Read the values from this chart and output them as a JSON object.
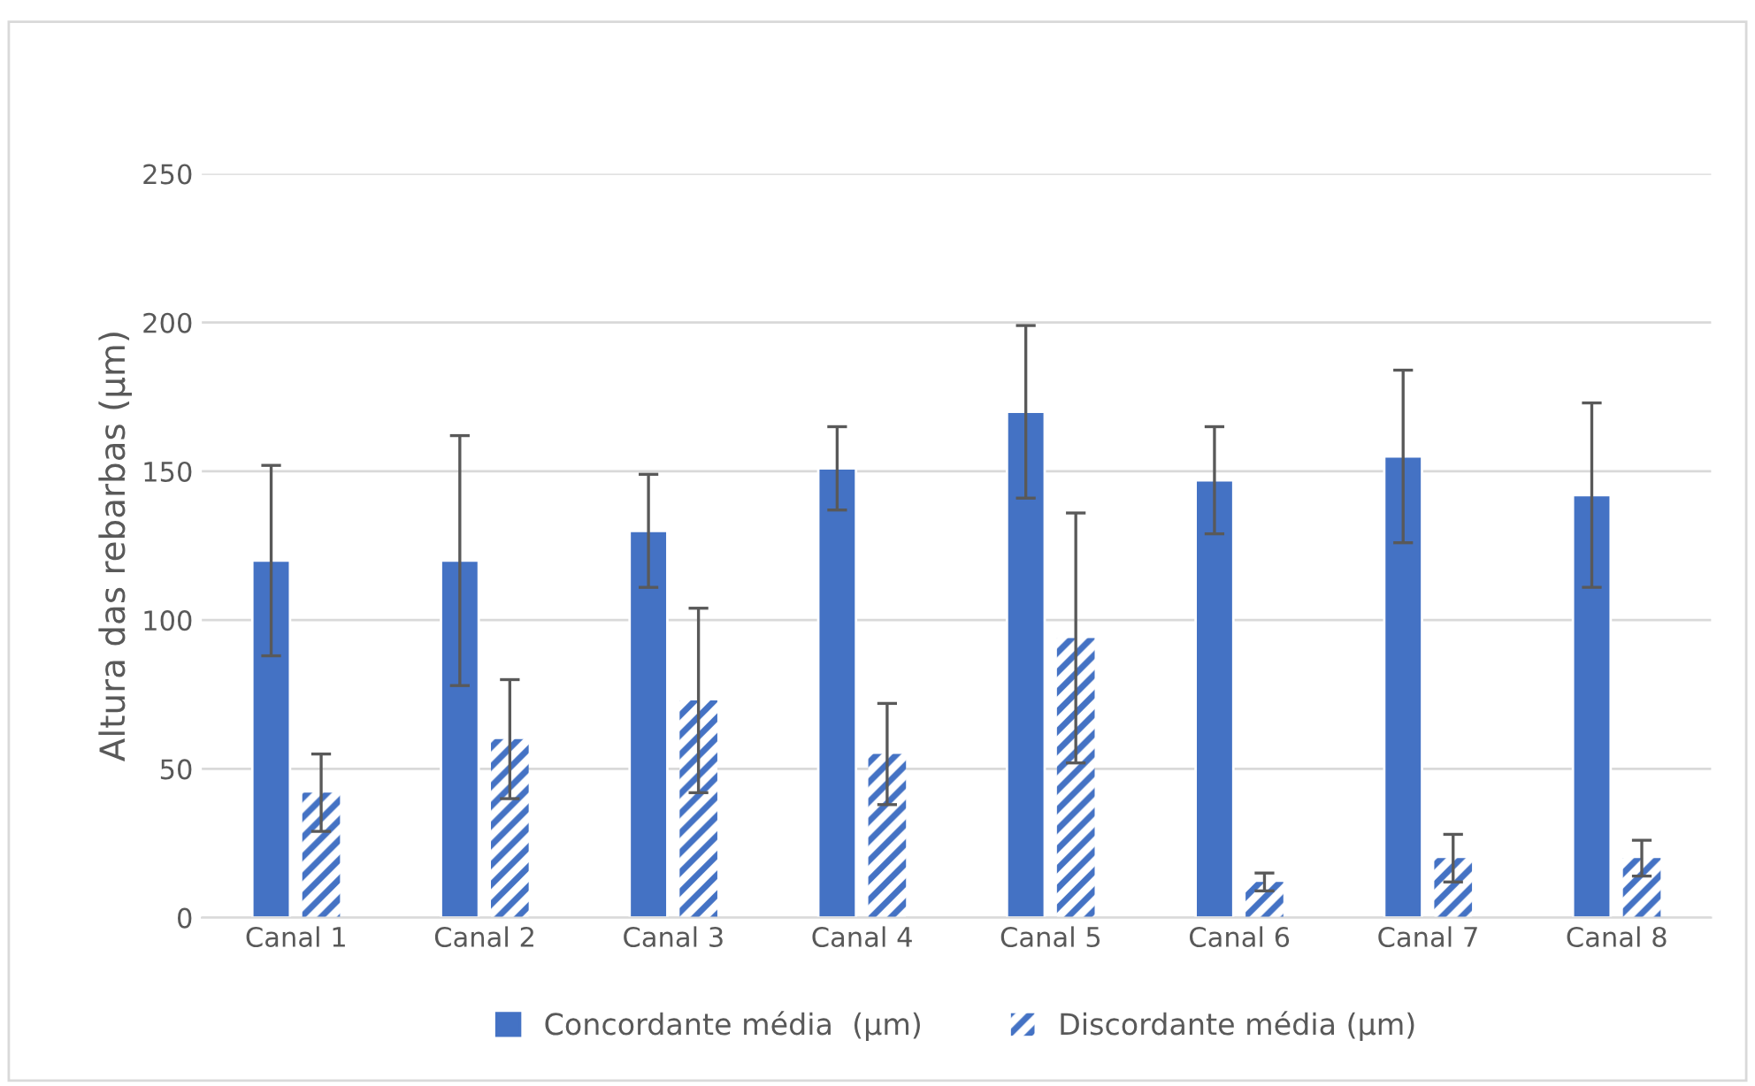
{
  "chart_data": {
    "type": "bar",
    "ylabel": "Altura das rebarbas (µm)",
    "categories": [
      "Canal 1",
      "Canal 2",
      "Canal 3",
      "Canal 4",
      "Canal 5",
      "Canal 6",
      "Canal 7",
      "Canal 8"
    ],
    "series": [
      {
        "name": "Concordante média  (µm)",
        "color": "#4472c4",
        "values": [
          120,
          120,
          130,
          151,
          170,
          147,
          155,
          142
        ],
        "errors": [
          32,
          42,
          19,
          14,
          29,
          18,
          29,
          31
        ]
      },
      {
        "name": "Discordante média (µm)",
        "color": "#4472c4",
        "values": [
          42,
          60,
          73,
          55,
          94,
          12,
          20,
          20
        ],
        "errors": [
          13,
          20,
          31,
          17,
          42,
          3,
          8,
          6
        ]
      }
    ],
    "ylim": [
      0,
      250
    ],
    "yticks": [
      0,
      50,
      100,
      150,
      200,
      250
    ],
    "grid": "y",
    "legend": "bottom"
  }
}
